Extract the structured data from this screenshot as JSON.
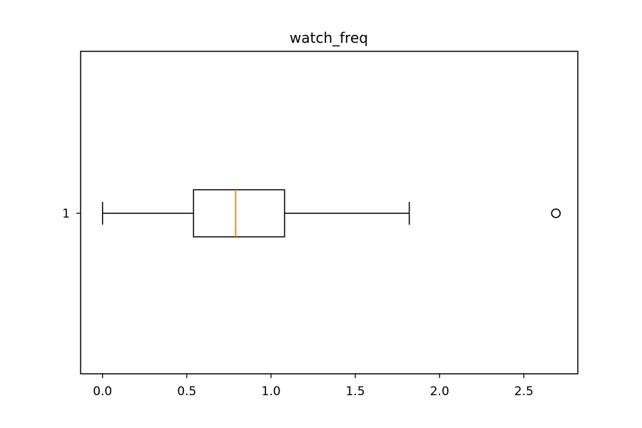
{
  "chart_data": {
    "type": "box",
    "title": "watch_freq",
    "orientation": "horizontal",
    "xlabel": "",
    "ylabel": "",
    "xlim": [
      -0.13,
      2.82
    ],
    "x_ticks": [
      0.0,
      0.5,
      1.0,
      1.5,
      2.0,
      2.5
    ],
    "x_tick_labels": [
      "0.0",
      "0.5",
      "1.0",
      "1.5",
      "2.0",
      "2.5"
    ],
    "categories": [
      "1"
    ],
    "boxes": [
      {
        "category": "1",
        "whisker_low": 0.0,
        "q1": 0.54,
        "median": 0.79,
        "q3": 1.08,
        "whisker_high": 1.82,
        "outliers": [
          2.69
        ]
      }
    ],
    "grid": false,
    "colors": {
      "box": "#000000",
      "median": "#ff7f0e",
      "whisker": "#000000",
      "outlier": "#000000"
    }
  }
}
